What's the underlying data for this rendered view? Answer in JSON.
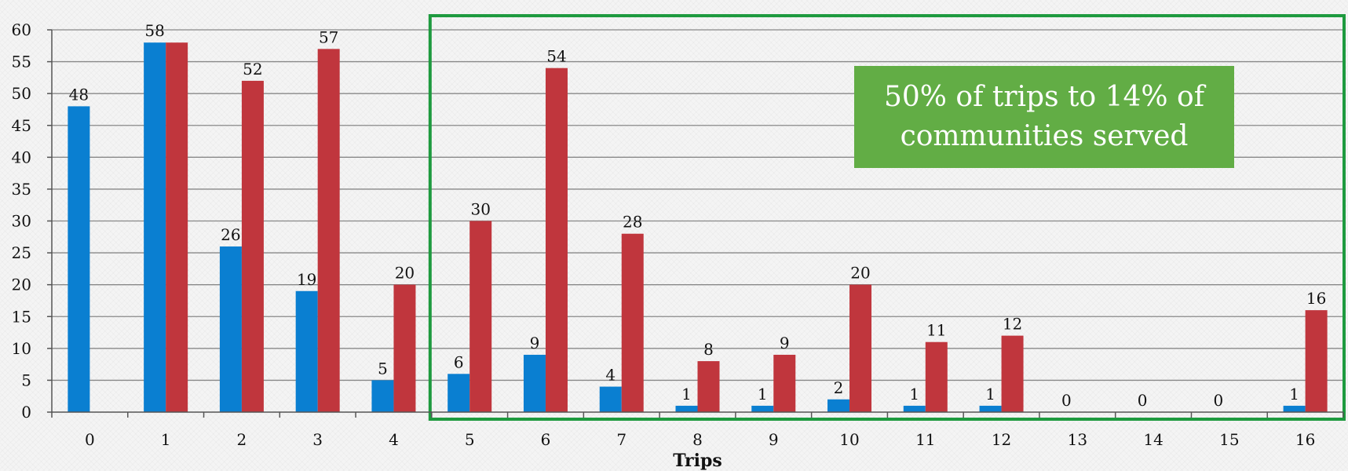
{
  "chart_data": {
    "type": "bar",
    "title": "",
    "xlabel": "Trips",
    "ylabel": "",
    "ylim": [
      0,
      60
    ],
    "yticks": [
      0,
      5,
      10,
      15,
      20,
      25,
      30,
      35,
      40,
      45,
      50,
      55,
      60
    ],
    "ytick_labels": [
      "0",
      "5",
      "10",
      "15",
      "20",
      "25",
      "30",
      "35",
      "40",
      "45",
      "50",
      "55",
      "60"
    ],
    "categories": [
      "0",
      "1",
      "2",
      "3",
      "4",
      "5",
      "6",
      "7",
      "8",
      "9",
      "10",
      "11",
      "12",
      "13",
      "14",
      "15",
      "16"
    ],
    "series": [
      {
        "color": "#0a7fd1",
        "values": [
          48,
          58,
          26,
          19,
          5,
          6,
          9,
          4,
          1,
          1,
          2,
          1,
          1,
          0,
          0,
          0,
          1
        ],
        "labels": [
          "48",
          "58",
          "26",
          "19",
          "5",
          "6",
          "9",
          "4",
          "1",
          "1",
          "2",
          "1",
          "1",
          "0",
          "0",
          "0",
          "1"
        ]
      },
      {
        "color": "#c0363d",
        "values": [
          0,
          58,
          52,
          57,
          20,
          30,
          54,
          28,
          8,
          9,
          20,
          11,
          12,
          0,
          0,
          0,
          16
        ],
        "labels": [
          "",
          "",
          "52",
          "57",
          "20",
          "30",
          "54",
          "28",
          "8",
          "9",
          "20",
          "11",
          "12",
          "",
          "",
          "",
          "16"
        ]
      }
    ],
    "grid": true,
    "legend": "none",
    "highlight": {
      "from_category": "5",
      "to_category": "16",
      "border_color": "#1e9a3f"
    },
    "annotation": {
      "text": "50% of trips to 14% of communities served",
      "background": "#62ad45",
      "text_color": "#ffffff"
    }
  }
}
